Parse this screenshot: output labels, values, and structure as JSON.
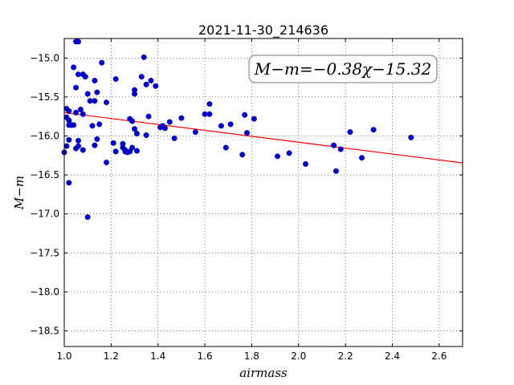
{
  "chart_data": {
    "type": "scatter",
    "title": "2021-11-30_214636",
    "xlabel": "airmass",
    "ylabel": "M−m",
    "annotation": "M−m=−0.38χ−15.32",
    "xlim": [
      1.0,
      2.7
    ],
    "ylim": [
      -18.7,
      -14.75
    ],
    "y_inverted": true,
    "grid": true,
    "xticks": [
      "1.0",
      "1.2",
      "1.4",
      "1.6",
      "1.8",
      "2.0",
      "2.2",
      "2.4",
      "2.6"
    ],
    "yticks": [
      "−15.0",
      "−15.5",
      "−16.0",
      "−16.5",
      "−17.0",
      "−17.5",
      "−18.0",
      "−18.5"
    ],
    "point_color": "#0000cc",
    "fit_color": "#ff0000",
    "fit": {
      "slope": -0.38,
      "intercept": -15.32
    },
    "points": [
      [
        1.0,
        -16.21
      ],
      [
        1.01,
        -16.13
      ],
      [
        1.01,
        -15.65
      ],
      [
        1.01,
        -15.76
      ],
      [
        1.02,
        -15.68
      ],
      [
        1.02,
        -15.8
      ],
      [
        1.02,
        -15.86
      ],
      [
        1.02,
        -16.05
      ],
      [
        1.02,
        -16.6
      ],
      [
        1.03,
        -15.86
      ],
      [
        1.04,
        -15.86
      ],
      [
        1.04,
        -15.12
      ],
      [
        1.05,
        -14.79
      ],
      [
        1.05,
        -15.38
      ],
      [
        1.05,
        -15.7
      ],
      [
        1.05,
        -16.16
      ],
      [
        1.06,
        -14.79
      ],
      [
        1.06,
        -15.21
      ],
      [
        1.06,
        -16.06
      ],
      [
        1.06,
        -16.13
      ],
      [
        1.07,
        -15.66
      ],
      [
        1.08,
        -15.72
      ],
      [
        1.08,
        -15.21
      ],
      [
        1.08,
        -16.18
      ],
      [
        1.09,
        -15.24
      ],
      [
        1.1,
        -17.04
      ],
      [
        1.1,
        -15.46
      ],
      [
        1.11,
        -15.55
      ],
      [
        1.12,
        -15.87
      ],
      [
        1.13,
        -15.55
      ],
      [
        1.13,
        -15.29
      ],
      [
        1.13,
        -16.12
      ],
      [
        1.14,
        -15.44
      ],
      [
        1.14,
        -16.04
      ],
      [
        1.15,
        -15.85
      ],
      [
        1.16,
        -15.06
      ],
      [
        1.18,
        -16.34
      ],
      [
        1.18,
        -15.57
      ],
      [
        1.21,
        -16.09
      ],
      [
        1.22,
        -16.2
      ],
      [
        1.22,
        -15.27
      ],
      [
        1.25,
        -16.1
      ],
      [
        1.25,
        -16.15
      ],
      [
        1.26,
        -16.18
      ],
      [
        1.26,
        -16.2
      ],
      [
        1.27,
        -16.21
      ],
      [
        1.28,
        -16.2
      ],
      [
        1.28,
        -15.78
      ],
      [
        1.29,
        -15.81
      ],
      [
        1.29,
        -16.15
      ],
      [
        1.3,
        -15.91
      ],
      [
        1.3,
        -15.46
      ],
      [
        1.3,
        -15.41
      ],
      [
        1.31,
        -16.19
      ],
      [
        1.31,
        -15.97
      ],
      [
        1.33,
        -15.24
      ],
      [
        1.34,
        -14.99
      ],
      [
        1.35,
        -15.34
      ],
      [
        1.35,
        -15.99
      ],
      [
        1.36,
        -15.75
      ],
      [
        1.37,
        -15.29
      ],
      [
        1.39,
        -15.36
      ],
      [
        1.41,
        -15.89
      ],
      [
        1.42,
        -15.87
      ],
      [
        1.43,
        -15.9
      ],
      [
        1.45,
        -15.82
      ],
      [
        1.47,
        -16.03
      ],
      [
        1.5,
        -15.77
      ],
      [
        1.56,
        -15.95
      ],
      [
        1.6,
        -15.72
      ],
      [
        1.62,
        -15.72
      ],
      [
        1.62,
        -15.59
      ],
      [
        1.67,
        -15.87
      ],
      [
        1.69,
        -16.15
      ],
      [
        1.71,
        -15.85
      ],
      [
        1.76,
        -16.24
      ],
      [
        1.77,
        -15.73
      ],
      [
        1.78,
        -15.96
      ],
      [
        1.81,
        -15.78
      ],
      [
        1.91,
        -16.26
      ],
      [
        1.96,
        -16.22
      ],
      [
        2.03,
        -16.36
      ],
      [
        2.15,
        -16.12
      ],
      [
        2.16,
        -16.45
      ],
      [
        2.18,
        -16.17
      ],
      [
        2.22,
        -15.95
      ],
      [
        2.27,
        -16.28
      ],
      [
        2.32,
        -15.92
      ],
      [
        2.48,
        -16.02
      ]
    ]
  }
}
